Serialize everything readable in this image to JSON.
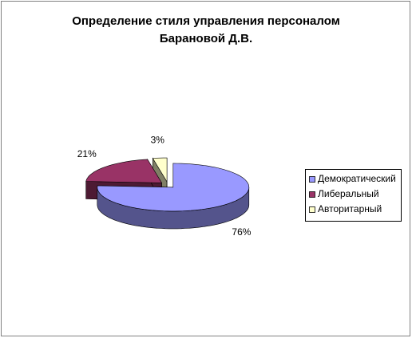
{
  "chart_data": {
    "type": "pie",
    "title": "Определение стиля управления персоналом Барановой Д.В.",
    "categories": [
      "Демократический",
      "Либеральный",
      "Авторитарный"
    ],
    "values": [
      76,
      21,
      3
    ],
    "value_labels": [
      "76%",
      "21%",
      "3%"
    ],
    "colors": [
      "#9999ff",
      "#993366",
      "#ffffcc"
    ],
    "legend": "right"
  }
}
